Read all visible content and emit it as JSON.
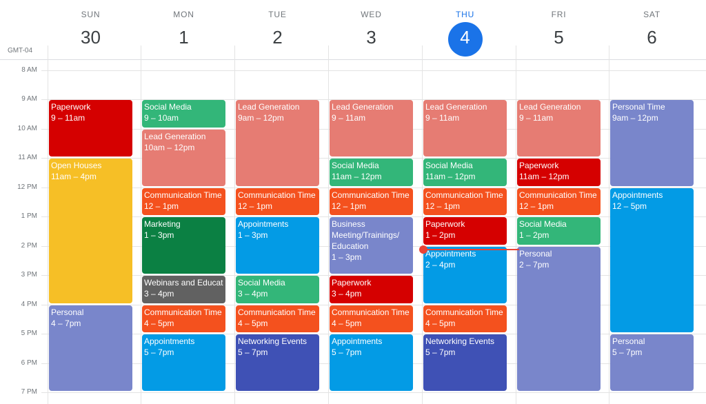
{
  "timezone": "GMT-04",
  "days": [
    {
      "name": "SUN",
      "num": "30",
      "today": false
    },
    {
      "name": "MON",
      "num": "1",
      "today": false
    },
    {
      "name": "TUE",
      "num": "2",
      "today": false
    },
    {
      "name": "WED",
      "num": "3",
      "today": false
    },
    {
      "name": "THU",
      "num": "4",
      "today": true
    },
    {
      "name": "FRI",
      "num": "5",
      "today": false
    },
    {
      "name": "SAT",
      "num": "6",
      "today": false
    }
  ],
  "hours": [
    "8 AM",
    "9 AM",
    "10 AM",
    "11 AM",
    "12 PM",
    "1 PM",
    "2 PM",
    "3 PM",
    "4 PM",
    "5 PM",
    "6 PM",
    "7 PM"
  ],
  "colors": {
    "tomato": "#d50000",
    "flamingo": "#e67c73",
    "tangerine": "#f4511e",
    "banana": "#f6bf26",
    "sage": "#33b679",
    "basil": "#0b8043",
    "peacock": "#039be5",
    "blueberry": "#3f51b5",
    "lavender": "#7986cb",
    "graphite": "#616161",
    "today": "#1a73e8",
    "now": "#ea4335"
  },
  "events": [
    {
      "day": 0,
      "start": 9,
      "end": 11,
      "title": "Paperwork",
      "time": "9 – 11am",
      "color": "tomato"
    },
    {
      "day": 0,
      "start": 11,
      "end": 16,
      "title": "Open Houses",
      "time": "11am – 4pm",
      "color": "banana"
    },
    {
      "day": 0,
      "start": 16,
      "end": 19,
      "title": "Personal",
      "time": "4 – 7pm",
      "color": "lavender"
    },
    {
      "day": 1,
      "start": 9,
      "end": 10,
      "title": "Social Media",
      "time": "9 – 10am",
      "color": "sage"
    },
    {
      "day": 1,
      "start": 10,
      "end": 12,
      "title": "Lead Generation",
      "time": "10am – 12pm",
      "color": "flamingo"
    },
    {
      "day": 1,
      "start": 12,
      "end": 13,
      "title": "Communication Time",
      "time": "12 – 1pm",
      "color": "tangerine"
    },
    {
      "day": 1,
      "start": 13,
      "end": 15,
      "title": "Marketing",
      "time": "1 – 3pm",
      "color": "basil"
    },
    {
      "day": 1,
      "start": 15,
      "end": 16,
      "title": "Webinars and Education",
      "time": "3 – 4pm",
      "color": "graphite"
    },
    {
      "day": 1,
      "start": 16,
      "end": 17,
      "title": "Communication Time",
      "time": "4 – 5pm",
      "color": "tangerine"
    },
    {
      "day": 1,
      "start": 17,
      "end": 19,
      "title": "Appointments",
      "time": "5 – 7pm",
      "color": "peacock"
    },
    {
      "day": 2,
      "start": 9,
      "end": 12,
      "title": "Lead Generation",
      "time": "9am – 12pm",
      "color": "flamingo"
    },
    {
      "day": 2,
      "start": 12,
      "end": 13,
      "title": "Communication Time",
      "time": "12 – 1pm",
      "color": "tangerine"
    },
    {
      "day": 2,
      "start": 13,
      "end": 15,
      "title": "Appointments",
      "time": "1 – 3pm",
      "color": "peacock"
    },
    {
      "day": 2,
      "start": 15,
      "end": 16,
      "title": "Social Media",
      "time": "3 – 4pm",
      "color": "sage"
    },
    {
      "day": 2,
      "start": 16,
      "end": 17,
      "title": "Communication Time",
      "time": "4 – 5pm",
      "color": "tangerine"
    },
    {
      "day": 2,
      "start": 17,
      "end": 19,
      "title": "Networking Events",
      "time": "5 – 7pm",
      "color": "blueberry"
    },
    {
      "day": 3,
      "start": 9,
      "end": 11,
      "title": "Lead Generation",
      "time": "9 – 11am",
      "color": "flamingo"
    },
    {
      "day": 3,
      "start": 11,
      "end": 12,
      "title": "Social Media",
      "time": "11am – 12pm",
      "color": "sage"
    },
    {
      "day": 3,
      "start": 12,
      "end": 13,
      "title": "Communication Time",
      "time": "12 – 1pm",
      "color": "tangerine"
    },
    {
      "day": 3,
      "start": 13,
      "end": 15,
      "title": "Business Meeting/Trainings/ Education",
      "time": "1 – 3pm",
      "color": "lavender",
      "wrap": true
    },
    {
      "day": 3,
      "start": 15,
      "end": 16,
      "title": "Paperwork",
      "time": "3 – 4pm",
      "color": "tomato"
    },
    {
      "day": 3,
      "start": 16,
      "end": 17,
      "title": "Communication Time",
      "time": "4 – 5pm",
      "color": "tangerine"
    },
    {
      "day": 3,
      "start": 17,
      "end": 19,
      "title": "Appointments",
      "time": "5 – 7pm",
      "color": "peacock"
    },
    {
      "day": 4,
      "start": 9,
      "end": 11,
      "title": "Lead Generation",
      "time": "9 – 11am",
      "color": "flamingo"
    },
    {
      "day": 4,
      "start": 11,
      "end": 12,
      "title": "Social Media",
      "time": "11am – 12pm",
      "color": "sage"
    },
    {
      "day": 4,
      "start": 12,
      "end": 13,
      "title": "Communication Time",
      "time": "12 – 1pm",
      "color": "tangerine"
    },
    {
      "day": 4,
      "start": 13,
      "end": 14,
      "title": "Paperwork",
      "time": "1 – 2pm",
      "color": "tomato"
    },
    {
      "day": 4,
      "start": 14,
      "end": 16,
      "title": "Appointments",
      "time": "2 – 4pm",
      "color": "peacock"
    },
    {
      "day": 4,
      "start": 16,
      "end": 17,
      "title": "Communication Time",
      "time": "4 – 5pm",
      "color": "tangerine"
    },
    {
      "day": 4,
      "start": 17,
      "end": 19,
      "title": "Networking Events",
      "time": "5 – 7pm",
      "color": "blueberry"
    },
    {
      "day": 5,
      "start": 9,
      "end": 11,
      "title": "Lead Generation",
      "time": "9 – 11am",
      "color": "flamingo"
    },
    {
      "day": 5,
      "start": 11,
      "end": 12,
      "title": "Paperwork",
      "time": "11am – 12pm",
      "color": "tomato"
    },
    {
      "day": 5,
      "start": 12,
      "end": 13,
      "title": "Communication Time",
      "time": "12 – 1pm",
      "color": "tangerine"
    },
    {
      "day": 5,
      "start": 13,
      "end": 14,
      "title": "Social Media",
      "time": "1 – 2pm",
      "color": "sage"
    },
    {
      "day": 5,
      "start": 14,
      "end": 19,
      "title": "Personal",
      "time": "2 – 7pm",
      "color": "lavender"
    },
    {
      "day": 6,
      "start": 9,
      "end": 12,
      "title": "Personal Time",
      "time": "9am – 12pm",
      "color": "lavender"
    },
    {
      "day": 6,
      "start": 12,
      "end": 17,
      "title": "Appointments",
      "time": "12 – 5pm",
      "color": "peacock"
    },
    {
      "day": 6,
      "start": 17,
      "end": 19,
      "title": "Personal",
      "time": "5 – 7pm",
      "color": "lavender"
    }
  ],
  "now": {
    "day": 4,
    "hour": 14.1
  }
}
